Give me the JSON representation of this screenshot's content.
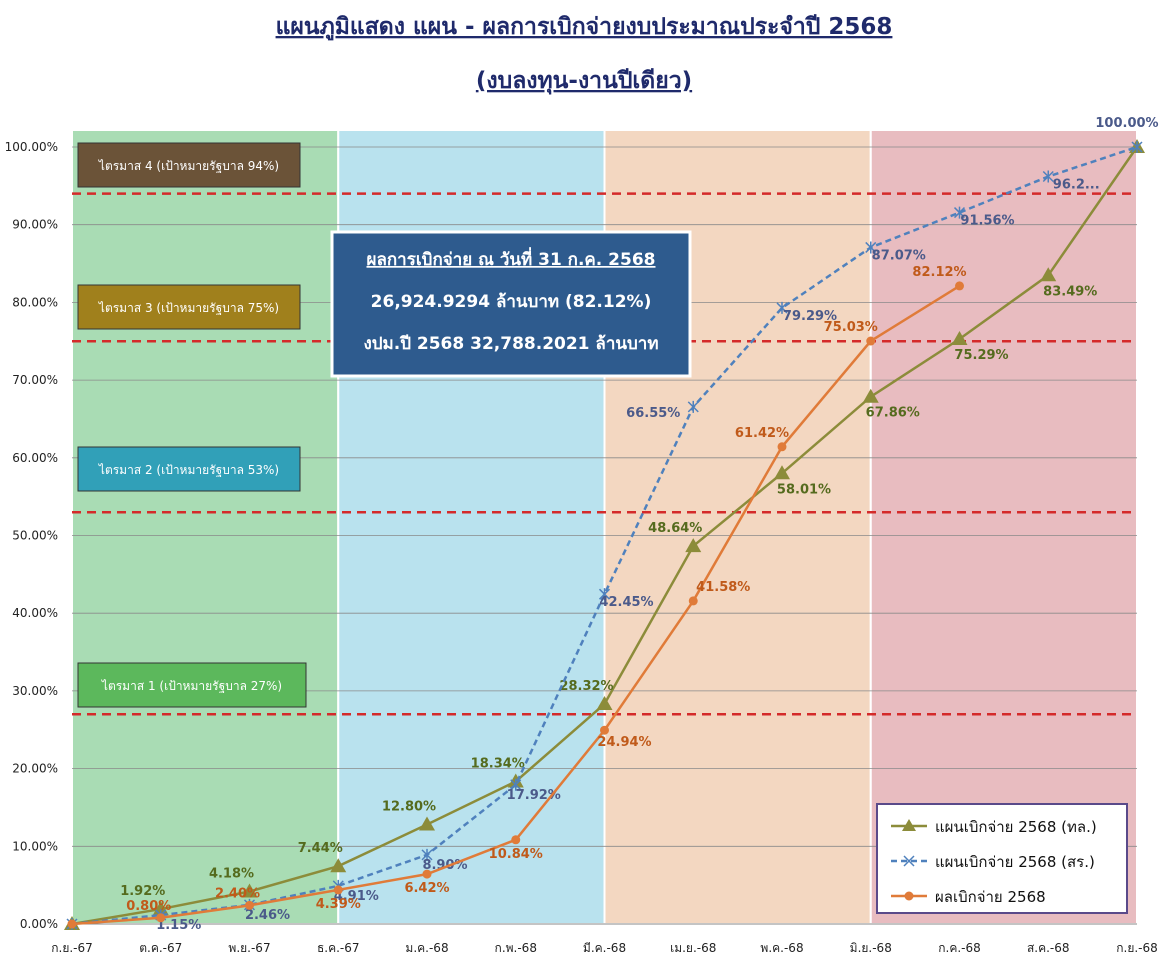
{
  "chart_data": {
    "type": "line",
    "title": "แผนภูมิแสดง แผน - ผลการเบิกจ่ายงบประมาณประจำปี 2568",
    "subtitle": "(งบลงทุน-งานปีเดียว)",
    "categories": [
      "ก.ย.-67",
      "ต.ค.-67",
      "พ.ย.-67",
      "ธ.ค.-67",
      "ม.ค.-68",
      "ก.พ.-68",
      "มี.ค.-68",
      "เม.ย.-68",
      "พ.ค.-68",
      "มิ.ย.-68",
      "ก.ค.-68",
      "ส.ค.-68",
      "ก.ย.-68"
    ],
    "series": [
      {
        "name": "แผนเบิกจ่าย 2568 (ทล.)",
        "color": "#8c8c3a",
        "marker": "triangle",
        "values": [
          0,
          1.92,
          4.18,
          7.44,
          12.8,
          18.34,
          28.32,
          48.64,
          58.01,
          67.86,
          75.29,
          83.49,
          100
        ],
        "value_labels": [
          null,
          "1.92%",
          "4.18%",
          "7.44%",
          "12.80%",
          "18.34%",
          "28.32%",
          "48.64%",
          "58.01%",
          "67.86%",
          "75.29%",
          "83.49%",
          null
        ]
      },
      {
        "name": "แผนเบิกจ่าย 2568 (สร.)",
        "color": "#4f81bd",
        "marker": "star",
        "dashed": true,
        "values": [
          0,
          1.15,
          2.46,
          4.91,
          8.9,
          17.92,
          42.45,
          66.55,
          79.29,
          87.07,
          91.56,
          96.2,
          100
        ],
        "value_labels": [
          null,
          "1.15%",
          "2.46%",
          "4.91%",
          "8.90%",
          "17.92%",
          "42.45%",
          "66.55%",
          "79.29%",
          "87.07%",
          "91.56%",
          "96.2...",
          "100.00%"
        ]
      },
      {
        "name": "ผลเบิกจ่าย 2568",
        "color": "#e07b39",
        "marker": "circle",
        "values": [
          0,
          0.8,
          2.4,
          4.39,
          6.42,
          10.84,
          24.94,
          41.58,
          61.42,
          75.03,
          82.12,
          null,
          null
        ],
        "value_labels": [
          null,
          "0.80%",
          "2.40%",
          "4.39%",
          "6.42%",
          "10.84%",
          "24.94%",
          "41.58%",
          "61.42%",
          "75.03%",
          "82.12%",
          null,
          null
        ]
      }
    ],
    "ylim": [
      0,
      100
    ],
    "yticks": [
      {
        "value": 0,
        "label": "0.00%"
      },
      {
        "value": 10,
        "label": "10.00%"
      },
      {
        "value": 20,
        "label": "20.00%"
      },
      {
        "value": 30,
        "label": "30.00%"
      },
      {
        "value": 40,
        "label": "40.00%"
      },
      {
        "value": 50,
        "label": "50.00%"
      },
      {
        "value": 60,
        "label": "60.00%"
      },
      {
        "value": 70,
        "label": "70.00%"
      },
      {
        "value": 80,
        "label": "80.00%"
      },
      {
        "value": 90,
        "label": "90.00%"
      },
      {
        "value": 100,
        "label": "100.00%"
      }
    ],
    "grid": true,
    "legend": "lower right",
    "quarters": [
      {
        "label": "ไตรมาส 1 (เป้าหมายรัฐบาล 27%)",
        "target": 27,
        "from": "ก.ย.-67",
        "to": "ธ.ค.-67",
        "color": "#a9dcb4",
        "box_color": "#5cb85c"
      },
      {
        "label": "ไตรมาส 2 (เป้าหมายรัฐบาล 53%)",
        "target": 53,
        "from": "ธ.ค.-67",
        "to": "มี.ค.-68",
        "color": "#b9e2ee",
        "box_color": "#31a0b8"
      },
      {
        "label": "ไตรมาส 3 (เป้าหมายรัฐบาล 75%)",
        "target": 75,
        "from": "มี.ค.-68",
        "to": "มิ.ย.-68",
        "color": "#f3d7c1",
        "box_color": "#a0801c"
      },
      {
        "label": "ไตรมาส 4 (เป้าหมายรัฐบาล 94%)",
        "target": 94,
        "from": "มิ.ย.-68",
        "to": "ก.ย.-68",
        "color": "#e8bcc0",
        "box_color": "#6b5338"
      }
    ],
    "info_box": [
      "ผลการเบิกจ่าย ณ วันที่ 31 ก.ค. 2568",
      "26,924.9294 ล้านบาท  (82.12%)",
      "งปม.ปี 2568  32,788.2021 ล้านบาท"
    ]
  }
}
